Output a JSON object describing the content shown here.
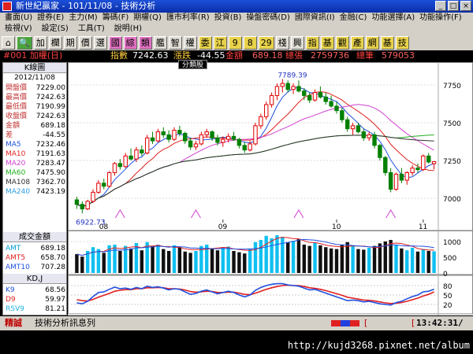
{
  "window": {
    "title": "新世紀贏家 - 101/11/08 - 技術分析"
  },
  "menu_row1": [
    "畫面(U)",
    "證券(E)",
    "主力(M)",
    "籌碼(F)",
    "期權(Q)",
    "匯市利率(R)",
    "投資(B)",
    "操盤密碼(D)",
    "國際資訊(I)",
    "金融(C)",
    "功能選擇(A)",
    "功能操作(F)"
  ],
  "menu_row2": [
    "檢視(V)",
    "設定(S)",
    "工具(T)",
    "說明(H)"
  ],
  "toolbar": [
    "加",
    "欄",
    "期",
    "價",
    "選",
    "國",
    "綜",
    "類",
    "艦",
    "智",
    "權",
    "委",
    "江",
    "9",
    "8",
    "29",
    "棧",
    "興",
    "指",
    "基",
    "觀",
    "產",
    "網",
    "基",
    "技"
  ],
  "info": {
    "code": "#001 加權(日)",
    "index_label": "指數",
    "index_value": "7242.63",
    "change_label": "漲跌",
    "change_value": "-44.55",
    "amount_label": "金額",
    "amount_value": "689.18",
    "volume_label": "總張",
    "volume_value": "2759736",
    "count_label": "總筆",
    "count_value": "579053",
    "tooltip": "分類股"
  },
  "panel": {
    "header": "K線圖",
    "date": "2012/11/08",
    "quote": [
      {
        "k": "開盤價",
        "v": "7229.00"
      },
      {
        "k": "最高價",
        "v": "7242.63"
      },
      {
        "k": "最低價",
        "v": "7190.99"
      },
      {
        "k": "收盤價",
        "v": "7242.63"
      },
      {
        "k": "金額",
        "v": "689.18"
      },
      {
        "k": "差",
        "v": "-44.55"
      }
    ],
    "ma": [
      {
        "k": "MA5",
        "v": "7232.46",
        "color": "#2050e0"
      },
      {
        "k": "MA10",
        "v": "7191.63",
        "color": "#e02020"
      },
      {
        "k": "MA20",
        "v": "7283.47",
        "color": "#d040d0"
      },
      {
        "k": "MA60",
        "v": "7475.90",
        "color": "#20b020"
      },
      {
        "k": "MA108",
        "v": "7362.70",
        "color": "#303030"
      },
      {
        "k": "MA240",
        "v": "7423.19",
        "color": "#30a0e0"
      }
    ],
    "vol_header": "成交金額",
    "vol": [
      {
        "k": "AMT",
        "v": "689.18",
        "color": "#00a0d0"
      },
      {
        "k": "AMT5",
        "v": "658.70",
        "color": "#e02020"
      },
      {
        "k": "AMT10",
        "v": "707.28",
        "color": "#2050e0"
      }
    ],
    "kd_header": "KD,J",
    "kd": [
      {
        "k": "K9",
        "v": "68.56",
        "color": "#2050e0"
      },
      {
        "k": "D9",
        "v": "59.97",
        "color": "#e02020"
      },
      {
        "k": "RSV9",
        "v": "81.21",
        "color": "#20b0e0"
      }
    ]
  },
  "chart_data": {
    "type": "candlestick",
    "price_axis": {
      "ticks": [
        7000,
        7250,
        7500,
        7750
      ],
      "ylim": [
        6860,
        7880
      ]
    },
    "high_label": "7789.39",
    "low_label": "6922.73",
    "months": [
      "08",
      "09",
      "10",
      "11"
    ],
    "vol_axis": {
      "ticks": [
        0,
        500,
        1000
      ]
    },
    "kd_axis": {
      "ticks": [
        20,
        50,
        80
      ]
    },
    "candles": [
      [
        6990,
        7010,
        6930,
        6960
      ],
      [
        6960,
        6980,
        6900,
        6930
      ],
      [
        6930,
        6990,
        6922,
        6980
      ],
      [
        6980,
        7060,
        6970,
        7040
      ],
      [
        7040,
        7120,
        7030,
        7100
      ],
      [
        7100,
        7130,
        7060,
        7080
      ],
      [
        7080,
        7180,
        7070,
        7170
      ],
      [
        7170,
        7240,
        7150,
        7230
      ],
      [
        7230,
        7260,
        7190,
        7210
      ],
      [
        7210,
        7300,
        7200,
        7280
      ],
      [
        7280,
        7330,
        7250,
        7260
      ],
      [
        7260,
        7340,
        7240,
        7320
      ],
      [
        7320,
        7350,
        7280,
        7300
      ],
      [
        7300,
        7420,
        7290,
        7400
      ],
      [
        7400,
        7440,
        7360,
        7380
      ],
      [
        7380,
        7460,
        7370,
        7440
      ],
      [
        7440,
        7470,
        7400,
        7420
      ],
      [
        7420,
        7450,
        7370,
        7390
      ],
      [
        7390,
        7470,
        7380,
        7450
      ],
      [
        7450,
        7480,
        7410,
        7430
      ],
      [
        7430,
        7440,
        7360,
        7380
      ],
      [
        7380,
        7400,
        7320,
        7340
      ],
      [
        7340,
        7380,
        7320,
        7360
      ],
      [
        7360,
        7440,
        7350,
        7420
      ],
      [
        7420,
        7460,
        7400,
        7440
      ],
      [
        7440,
        7450,
        7380,
        7400
      ],
      [
        7400,
        7420,
        7350,
        7370
      ],
      [
        7370,
        7410,
        7340,
        7390
      ],
      [
        7390,
        7430,
        7370,
        7410
      ],
      [
        7410,
        7440,
        7380,
        7390
      ],
      [
        7390,
        7400,
        7330,
        7350
      ],
      [
        7350,
        7370,
        7300,
        7320
      ],
      [
        7320,
        7380,
        7310,
        7360
      ],
      [
        7360,
        7500,
        7350,
        7480
      ],
      [
        7480,
        7560,
        7460,
        7540
      ],
      [
        7540,
        7640,
        7520,
        7620
      ],
      [
        7620,
        7700,
        7600,
        7680
      ],
      [
        7680,
        7760,
        7650,
        7740
      ],
      [
        7740,
        7789,
        7700,
        7760
      ],
      [
        7760,
        7780,
        7700,
        7720
      ],
      [
        7720,
        7760,
        7690,
        7740
      ],
      [
        7740,
        7780,
        7700,
        7710
      ],
      [
        7710,
        7730,
        7650,
        7680
      ],
      [
        7680,
        7700,
        7630,
        7650
      ],
      [
        7650,
        7720,
        7640,
        7700
      ],
      [
        7700,
        7740,
        7660,
        7670
      ],
      [
        7670,
        7700,
        7620,
        7640
      ],
      [
        7640,
        7680,
        7600,
        7610
      ],
      [
        7610,
        7640,
        7560,
        7580
      ],
      [
        7580,
        7600,
        7500,
        7520
      ],
      [
        7520,
        7540,
        7440,
        7460
      ],
      [
        7460,
        7500,
        7420,
        7480
      ],
      [
        7480,
        7500,
        7430,
        7440
      ],
      [
        7440,
        7460,
        7380,
        7400
      ],
      [
        7400,
        7440,
        7380,
        7420
      ],
      [
        7420,
        7440,
        7330,
        7350
      ],
      [
        7350,
        7360,
        7250,
        7270
      ],
      [
        7270,
        7280,
        7150,
        7170
      ],
      [
        7170,
        7200,
        7040,
        7060
      ],
      [
        7060,
        7170,
        7050,
        7160
      ],
      [
        7160,
        7200,
        7100,
        7120
      ],
      [
        7120,
        7180,
        7090,
        7170
      ],
      [
        7170,
        7220,
        7150,
        7200
      ],
      [
        7200,
        7230,
        7170,
        7190
      ],
      [
        7190,
        7290,
        7180,
        7280
      ],
      [
        7280,
        7300,
        7230,
        7240
      ],
      [
        7229,
        7242.63,
        7190.99,
        7242.63
      ]
    ],
    "amounts": [
      600,
      520,
      700,
      820,
      760,
      640,
      880,
      900,
      700,
      860,
      780,
      950,
      720,
      980,
      860,
      900,
      760,
      700,
      880,
      820,
      680,
      640,
      700,
      860,
      900,
      780,
      720,
      800,
      840,
      700,
      660,
      620,
      760,
      980,
      1050,
      1180,
      1100,
      1200,
      1150,
      980,
      1020,
      1080,
      900,
      860,
      960,
      880,
      820,
      780,
      760,
      900,
      980,
      880,
      760,
      740,
      800,
      860,
      940,
      1000,
      1050,
      900,
      780,
      720,
      800,
      680,
      760,
      700,
      689
    ],
    "kd_k": [
      25,
      22,
      30,
      45,
      58,
      60,
      68,
      75,
      70,
      72,
      68,
      74,
      70,
      78,
      74,
      76,
      72,
      66,
      70,
      68,
      60,
      52,
      55,
      62,
      66,
      60,
      54,
      58,
      62,
      58,
      50,
      44,
      50,
      65,
      74,
      80,
      84,
      86,
      86,
      82,
      80,
      78,
      72,
      66,
      68,
      62,
      56,
      50,
      44,
      38,
      32,
      34,
      32,
      28,
      30,
      26,
      22,
      20,
      18,
      26,
      30,
      38,
      45,
      50,
      60,
      62,
      68.56
    ],
    "kd_d": [
      35,
      32,
      31,
      36,
      43,
      49,
      55,
      62,
      65,
      67,
      67,
      70,
      70,
      73,
      73,
      74,
      73,
      70,
      70,
      69,
      66,
      61,
      59,
      60,
      62,
      61,
      58,
      58,
      59,
      59,
      56,
      52,
      51,
      56,
      62,
      68,
      73,
      77,
      80,
      81,
      80,
      80,
      77,
      73,
      71,
      68,
      64,
      59,
      54,
      49,
      43,
      40,
      37,
      34,
      33,
      31,
      28,
      25,
      23,
      24,
      26,
      30,
      35,
      40,
      47,
      52,
      59.97
    ]
  },
  "status": {
    "left_label": "精誠",
    "message": "技術分析訊息列",
    "bracket": "[",
    "time_prefix": "[",
    "time": "13:42:31/"
  },
  "url": "http://kujd3268.pixnet.net/album"
}
